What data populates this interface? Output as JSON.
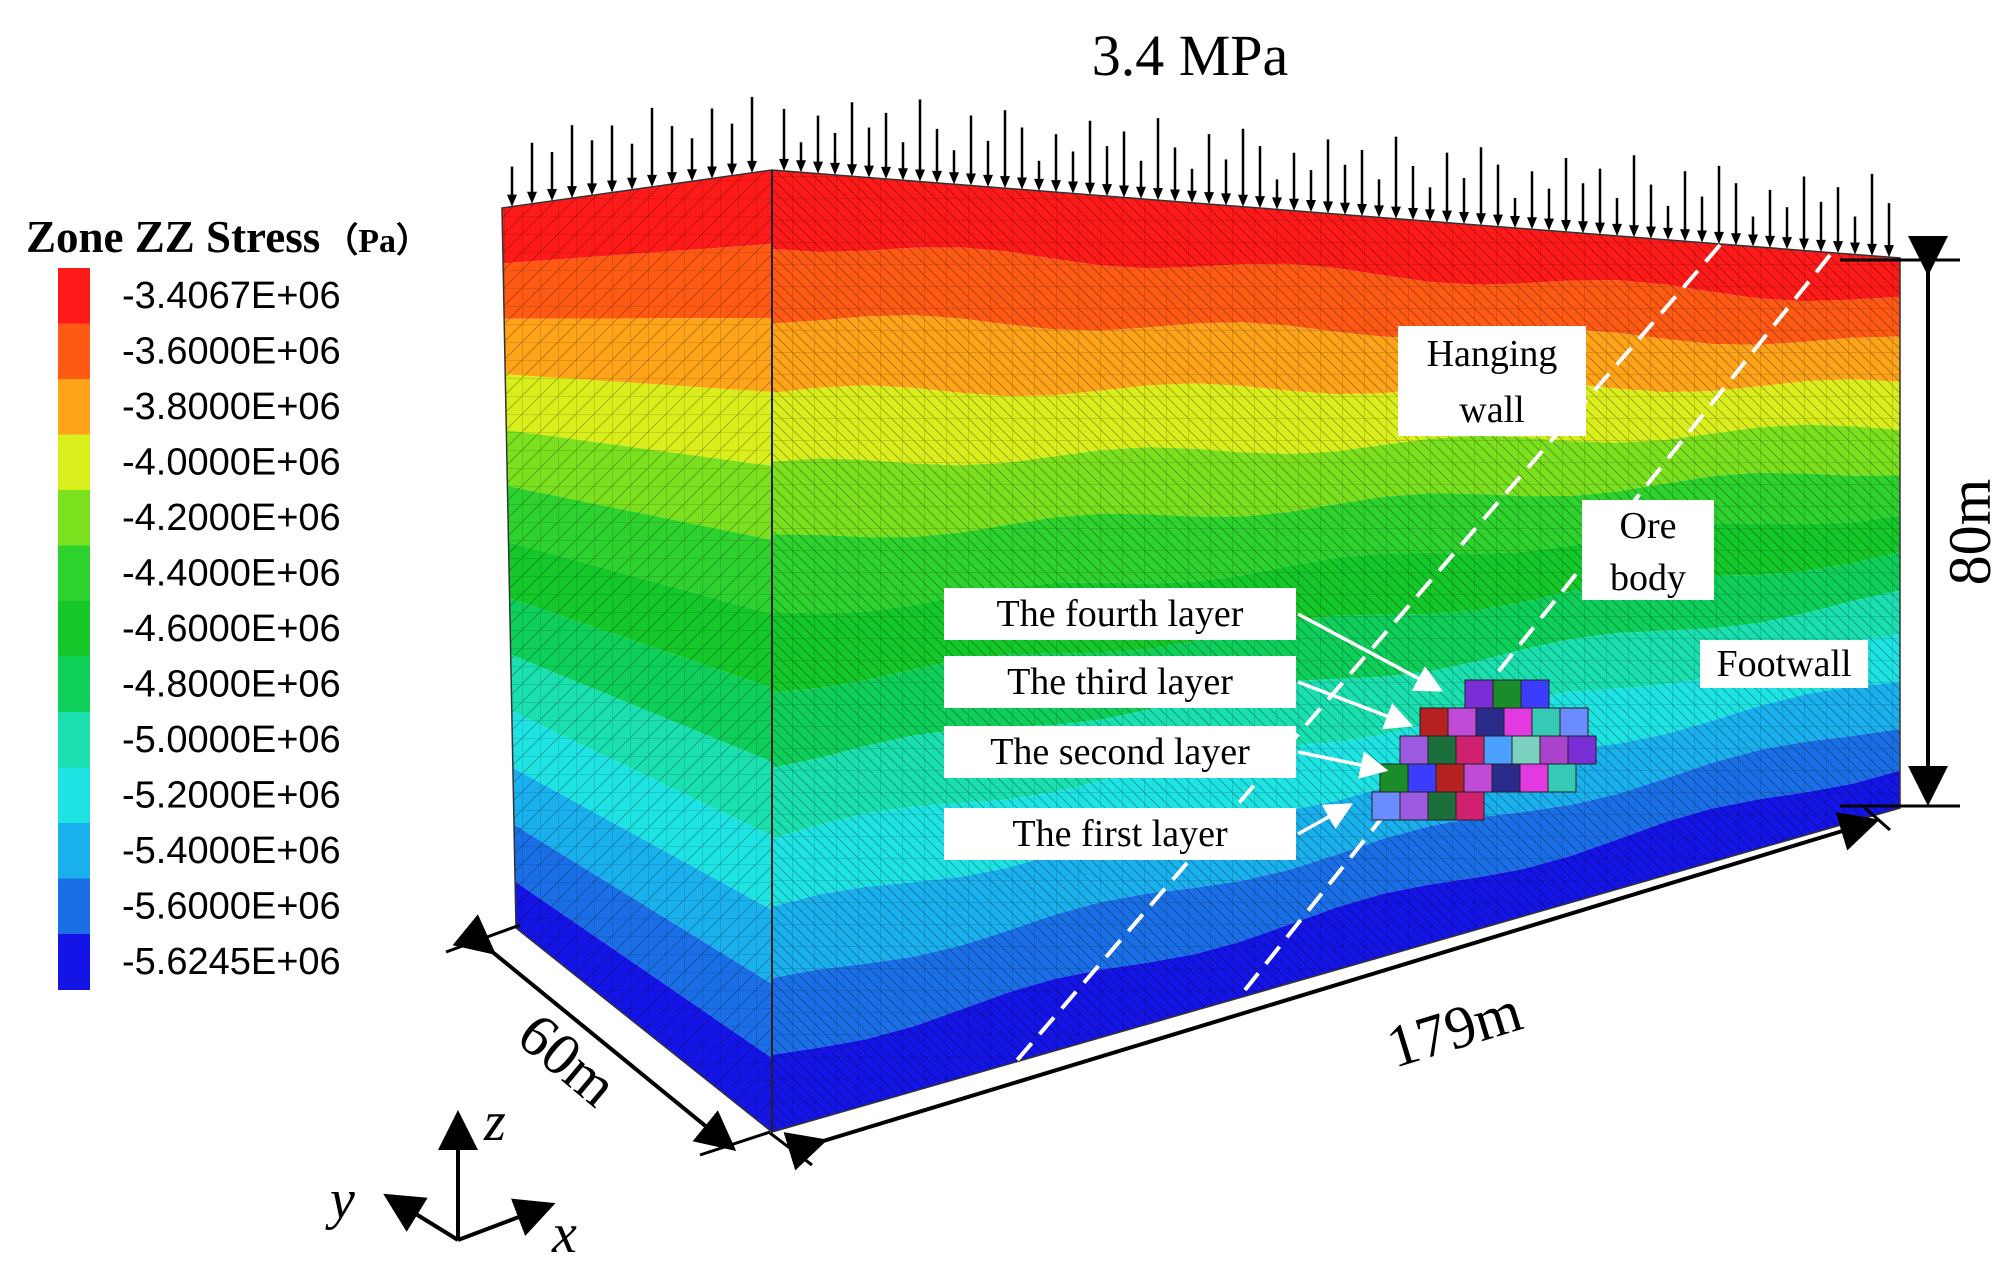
{
  "load_label": "3.4 MPa",
  "legend": {
    "title": "Zone ZZ Stress",
    "unit": "（Pa）",
    "entries": [
      {
        "label": "-3.4067E+06",
        "color": "#ff1a1a"
      },
      {
        "label": "-3.6000E+06",
        "color": "#ff5a14"
      },
      {
        "label": "-3.8000E+06",
        "color": "#ffa319"
      },
      {
        "label": "-4.0000E+06",
        "color": "#d9ee1a"
      },
      {
        "label": "-4.2000E+06",
        "color": "#7be01e"
      },
      {
        "label": "-4.4000E+06",
        "color": "#2ed22e"
      },
      {
        "label": "-4.6000E+06",
        "color": "#14c82a"
      },
      {
        "label": "-4.8000E+06",
        "color": "#0ecf5a"
      },
      {
        "label": "-5.0000E+06",
        "color": "#1ae0b0"
      },
      {
        "label": "-5.2000E+06",
        "color": "#1ee3e3"
      },
      {
        "label": "-5.4000E+06",
        "color": "#1ab0ee"
      },
      {
        "label": "-5.6000E+06",
        "color": "#1a6fe6"
      },
      {
        "label": "-5.6245E+06",
        "color": "#1414e6"
      }
    ]
  },
  "labels": {
    "hanging_wall": [
      "Hanging",
      "wall"
    ],
    "ore_body": [
      "Ore",
      "body"
    ],
    "footwall": "Footwall",
    "layers": [
      "The fourth layer",
      "The third layer",
      "The second layer",
      "The first layer"
    ]
  },
  "dimensions": {
    "height": "80m",
    "length": "179m",
    "width": "60m"
  },
  "axes": {
    "z": "z",
    "y": "y",
    "x": "x"
  }
}
